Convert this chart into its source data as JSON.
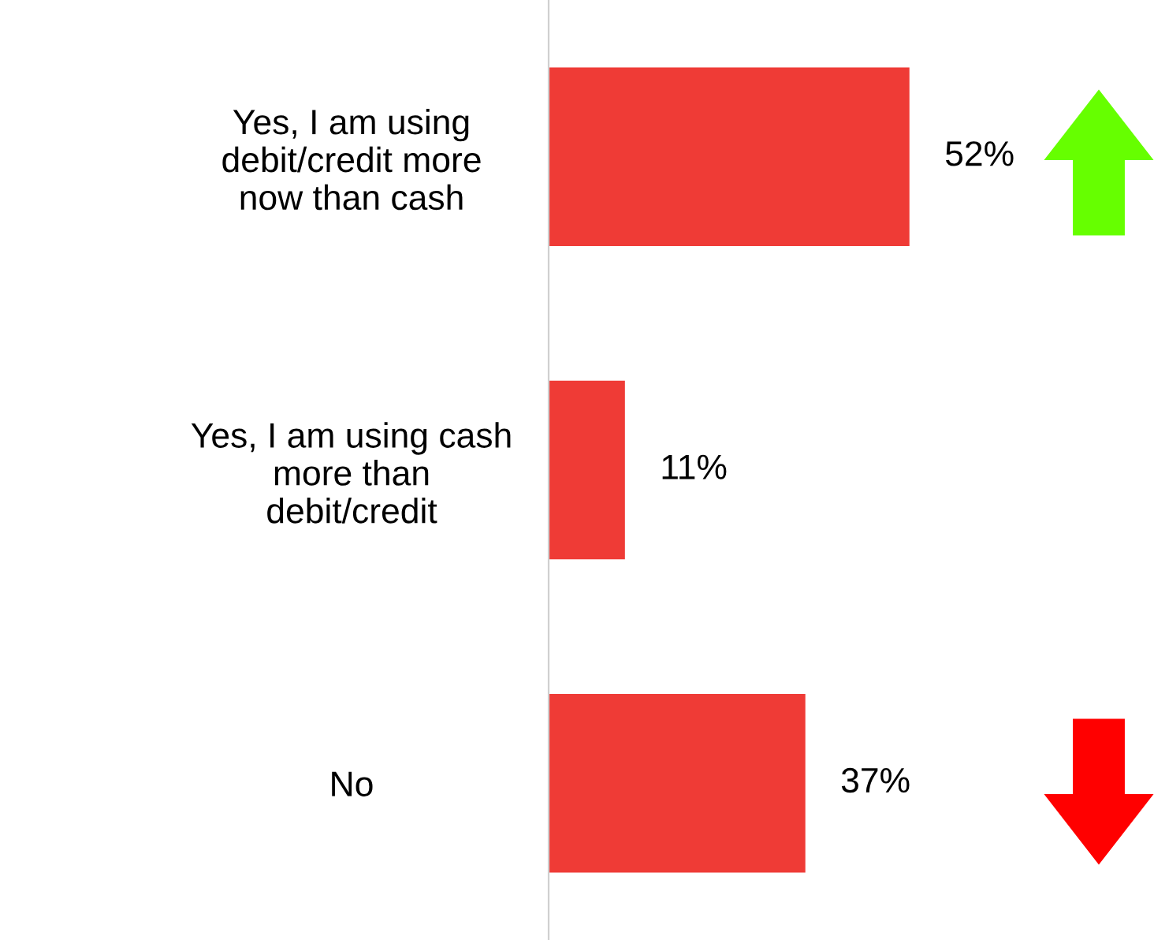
{
  "chart_data": {
    "type": "bar",
    "orientation": "horizontal",
    "categories": [
      "Yes, I am using\ndebit/credit more\nnow than cash",
      "Yes, I am using cash\nmore than\ndebit/credit",
      "No"
    ],
    "values": [
      52,
      11,
      37
    ],
    "value_labels": [
      "52%",
      "11%",
      "37%"
    ],
    "color": "#ef3b36",
    "tick_labels": "y",
    "grid": false,
    "legend": false
  }
}
